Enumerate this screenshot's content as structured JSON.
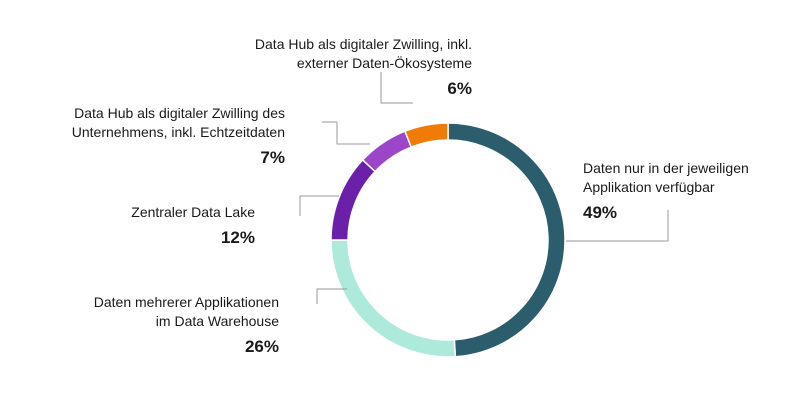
{
  "chart_data": {
    "type": "pie",
    "title": "",
    "series": [
      {
        "label_lines": [
          "Daten nur in der jeweiligen",
          "Applikation verfügbar"
        ],
        "value": 49,
        "value_text": "49%",
        "color": "#2c5d6c"
      },
      {
        "label_lines": [
          "Daten mehrerer Applikationen",
          "im Data Warehouse"
        ],
        "value": 26,
        "value_text": "26%",
        "color": "#aeeadc"
      },
      {
        "label_lines": [
          "Zentraler Data Lake"
        ],
        "value": 12,
        "value_text": "12%",
        "color": "#6a20a8"
      },
      {
        "label_lines": [
          "Data Hub als digitaler Zwilling des",
          "Unternehmens, inkl. Echtzeitdaten"
        ],
        "value": 7,
        "value_text": "7%",
        "color": "#9b45c8"
      },
      {
        "label_lines": [
          "Data Hub als digitaler Zwilling, inkl.",
          "externer Daten-Ökosysteme"
        ],
        "value": 6,
        "value_text": "6%",
        "color": "#f07b06"
      }
    ],
    "leader_color": "#9a9a9a"
  }
}
